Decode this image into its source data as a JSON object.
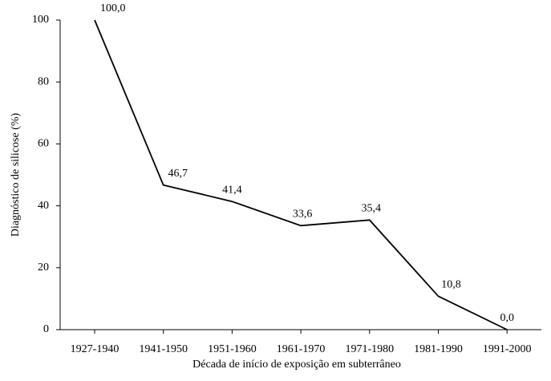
{
  "chart_data": {
    "type": "line",
    "x_label": "Década de início de exposição em subterrâneo",
    "y_label": "Diagnóstico de silicose (%)",
    "categories": [
      "1927-1940",
      "1941-1950",
      "1951-1960",
      "1961-1970",
      "1971-1980",
      "1981-1990",
      "1991-2000"
    ],
    "values": [
      100,
      46.7,
      41.4,
      33.6,
      35.4,
      10.8,
      0
    ],
    "value_labels": [
      "100,0",
      "46,7",
      "41,4",
      "33,6",
      "35,4",
      "10,8",
      "0,0"
    ],
    "color": "#000000",
    "ylim": [
      0,
      100
    ],
    "yticks": [
      0,
      20,
      40,
      60,
      80,
      100
    ]
  }
}
